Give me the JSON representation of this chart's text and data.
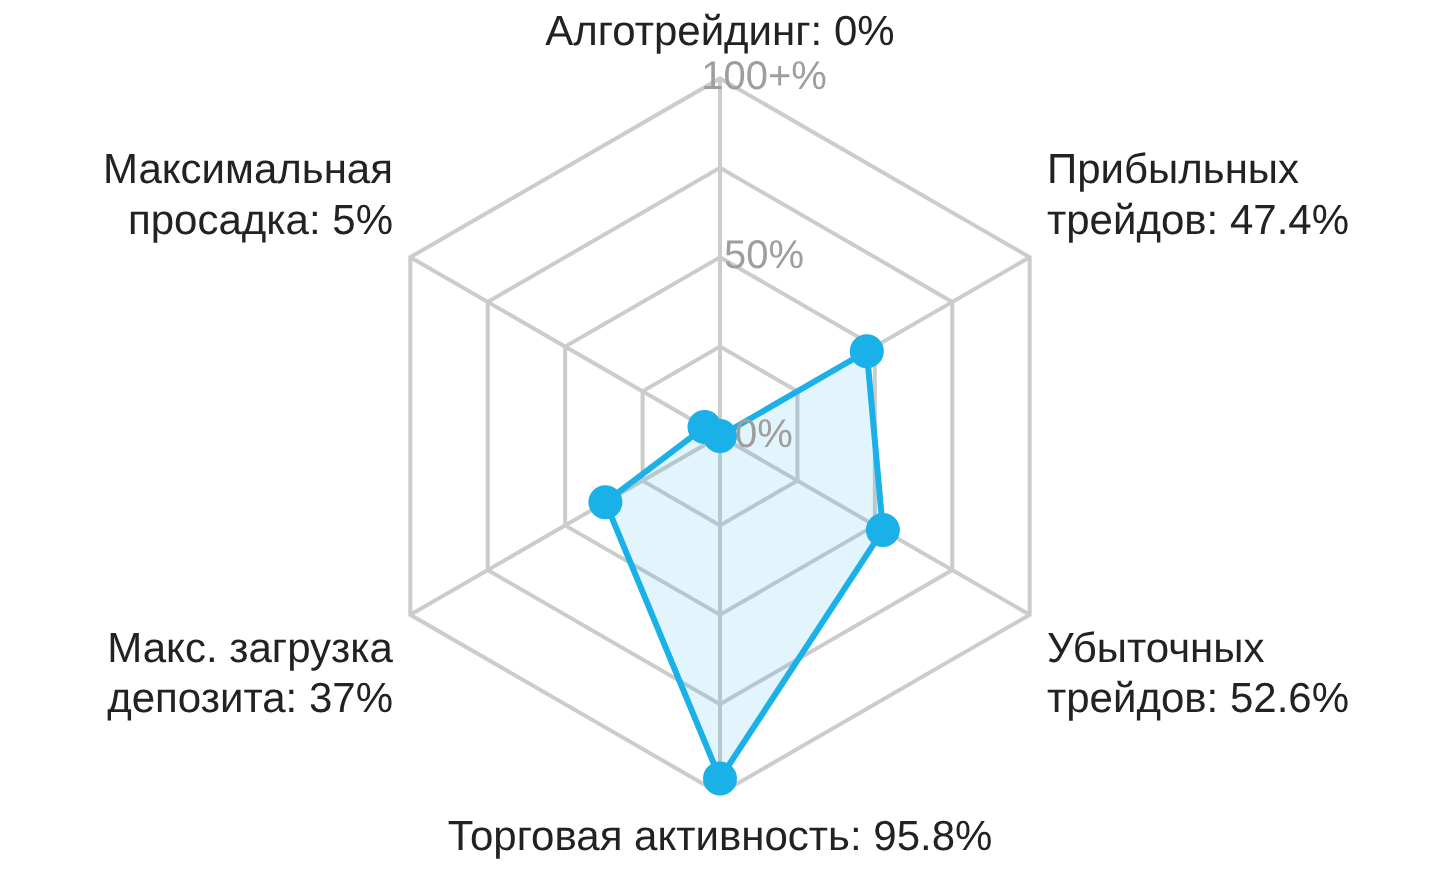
{
  "chart_data": {
    "type": "radar",
    "categories": [
      "Алготрейдинг: 0%",
      "Прибыльных\nтрейдов: 47.4%",
      "Убыточных\nтрейдов: 52.6%",
      "Торговая активность: 95.8%",
      "Макс. загрузка\nдепозита: 37%",
      "Максимальная\nпросадка: 5%"
    ],
    "series": [
      {
        "color": "#1ab0e8",
        "values": [
          0,
          47.4,
          52.6,
          95.8,
          37,
          5
        ]
      }
    ],
    "ylim": [
      0,
      100
    ],
    "yticks": [
      {
        "value": 0,
        "label": "0%"
      },
      {
        "value": 50,
        "label": "50%"
      },
      {
        "value": 100,
        "label": "100+%"
      }
    ],
    "grid": true,
    "legend": false,
    "marker": "circle"
  }
}
